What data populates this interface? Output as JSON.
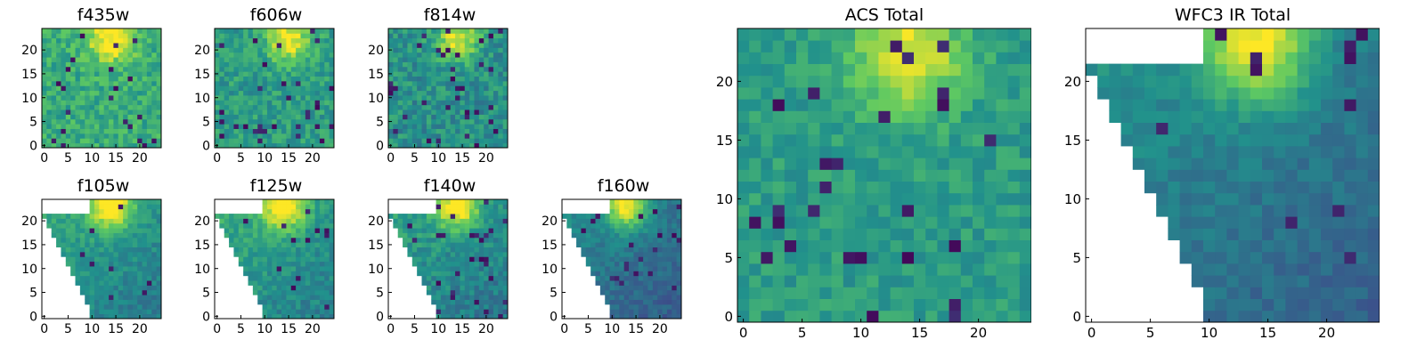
{
  "figure": {
    "colormap": "viridis",
    "colormap_stops": [
      "#440154",
      "#3b528b",
      "#21918c",
      "#5ec962",
      "#fde725"
    ]
  },
  "chart_data": [
    {
      "id": "f435w",
      "type": "heatmap",
      "title": "f435w",
      "grid_size": 25,
      "xticks": [
        "0",
        "5",
        "10",
        "15",
        "20"
      ],
      "yticks": [
        "0",
        "5",
        "10",
        "15",
        "20"
      ],
      "mask": "none",
      "hotspot_center": [
        14,
        22
      ],
      "mean_level": 0.62,
      "noise": 0.13,
      "dark_pixel_fraction": 0.04
    },
    {
      "id": "f606w",
      "type": "heatmap",
      "title": "f606w",
      "grid_size": 25,
      "xticks": [
        "0",
        "5",
        "10",
        "15",
        "20"
      ],
      "yticks": [
        "0",
        "5",
        "10",
        "15",
        "20"
      ],
      "mask": "none",
      "hotspot_center": [
        15,
        22
      ],
      "mean_level": 0.55,
      "noise": 0.12,
      "dark_pixel_fraction": 0.05
    },
    {
      "id": "f814w",
      "type": "heatmap",
      "title": "f814w",
      "grid_size": 25,
      "xticks": [
        "0",
        "5",
        "10",
        "15",
        "20"
      ],
      "yticks": [
        "0",
        "5",
        "10",
        "15",
        "20"
      ],
      "mask": "none",
      "hotspot_center": [
        14,
        22
      ],
      "mean_level": 0.5,
      "noise": 0.13,
      "dark_pixel_fraction": 0.05
    },
    {
      "id": "f105w",
      "type": "heatmap",
      "title": "f105w",
      "grid_size": 25,
      "xticks": [
        "0",
        "5",
        "10",
        "15",
        "20"
      ],
      "yticks": [
        "0",
        "5",
        "10",
        "15",
        "20"
      ],
      "mask": "triangle-left",
      "hotspot_center": [
        14,
        23
      ],
      "mean_level": 0.5,
      "noise": 0.08,
      "dark_pixel_fraction": 0.02
    },
    {
      "id": "f125w",
      "type": "heatmap",
      "title": "f125w",
      "grid_size": 25,
      "xticks": [
        "0",
        "5",
        "10",
        "15",
        "20"
      ],
      "yticks": [
        "0",
        "5",
        "10",
        "15",
        "20"
      ],
      "mask": "triangle-left",
      "hotspot_center": [
        14,
        23
      ],
      "mean_level": 0.52,
      "noise": 0.09,
      "dark_pixel_fraction": 0.03
    },
    {
      "id": "f140w",
      "type": "heatmap",
      "title": "f140w",
      "grid_size": 25,
      "xticks": [
        "0",
        "5",
        "10",
        "15",
        "20"
      ],
      "yticks": [
        "0",
        "5",
        "10",
        "15",
        "20"
      ],
      "mask": "triangle-left",
      "hotspot_center": [
        14,
        23
      ],
      "mean_level": 0.48,
      "noise": 0.1,
      "dark_pixel_fraction": 0.05
    },
    {
      "id": "f160w",
      "type": "heatmap",
      "title": "f160w",
      "grid_size": 25,
      "xticks": [
        "0",
        "5",
        "10",
        "15",
        "20"
      ],
      "yticks": [
        "0",
        "5",
        "10",
        "15",
        "20"
      ],
      "mask": "triangle-left",
      "hotspot_center": [
        13,
        23
      ],
      "mean_level": 0.38,
      "noise": 0.07,
      "dark_pixel_fraction": 0.03
    },
    {
      "id": "acs_total",
      "type": "heatmap",
      "title": "ACS Total",
      "grid_size": 25,
      "xticks": [
        "0",
        "5",
        "10",
        "15",
        "20"
      ],
      "yticks": [
        "0",
        "5",
        "10",
        "15",
        "20"
      ],
      "mask": "none",
      "hotspot_center": [
        14,
        22
      ],
      "mean_level": 0.55,
      "noise": 0.09,
      "dark_pixel_fraction": 0.03
    },
    {
      "id": "wfc3_ir_total",
      "type": "heatmap",
      "title": "WFC3 IR Total",
      "grid_size": 25,
      "xticks": [
        "0",
        "5",
        "10",
        "15",
        "20"
      ],
      "yticks": [
        "0",
        "5",
        "10",
        "15",
        "20"
      ],
      "mask": "triangle-left",
      "hotspot_center": [
        14,
        23
      ],
      "mean_level": 0.4,
      "noise": 0.06,
      "dark_pixel_fraction": 0.02
    }
  ]
}
